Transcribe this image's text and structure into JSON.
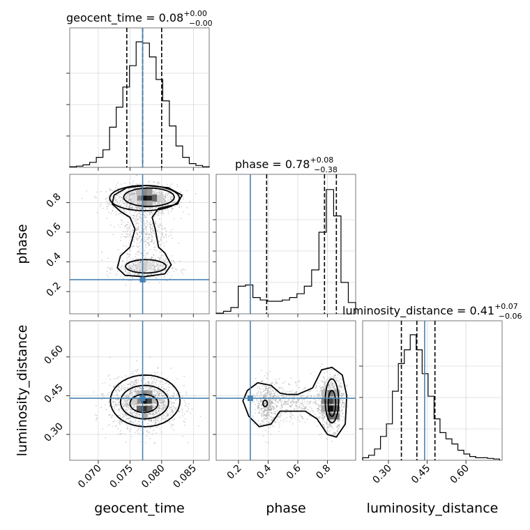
{
  "chart_data": {
    "type": "corner",
    "parameters": [
      "geocent_time",
      "phase",
      "luminosity_distance"
    ],
    "axis_labels": {
      "geocent_time": "geocent_time",
      "phase": "phase",
      "luminosity_distance": "luminosity_distance"
    },
    "ranges": {
      "geocent_time": [
        0.0655,
        0.0875
      ],
      "phase": [
        0.05,
        0.99
      ],
      "luminosity_distance": [
        0.2,
        0.74
      ]
    },
    "ticks": {
      "geocent_time": {
        "values": [
          0.07,
          0.075,
          0.08,
          0.085
        ],
        "labels": [
          "0.070",
          "0.075",
          "0.080",
          "0.085"
        ]
      },
      "phase": {
        "values": [
          0.2,
          0.4,
          0.6,
          0.8
        ],
        "labels": [
          "0.2",
          "0.4",
          "0.6",
          "0.8"
        ]
      },
      "luminosity_distance": {
        "values": [
          0.3,
          0.45,
          0.6
        ],
        "labels": [
          "0.30",
          "0.45",
          "0.60"
        ]
      }
    },
    "truths": {
      "geocent_time": 0.077,
      "phase": 0.28,
      "luminosity_distance": 0.44
    },
    "quantiles": {
      "geocent_time": [
        0.0745,
        0.077,
        0.08
      ],
      "phase": [
        0.39,
        0.78,
        0.86
      ],
      "luminosity_distance": [
        0.35,
        0.41,
        0.48
      ]
    },
    "titles": {
      "geocent_time": {
        "text": "geocent_time = 0.08",
        "plus": "+0.00",
        "minus": "−0.00"
      },
      "phase": {
        "text": "phase = 0.78",
        "plus": "+0.08",
        "minus": "−0.38"
      },
      "luminosity_distance": {
        "text": "luminosity_distance = 0.41",
        "plus": "+0.07",
        "minus": "−0.06"
      }
    },
    "histograms": {
      "geocent_time": [
        0.5,
        1,
        2,
        4,
        8,
        14,
        32,
        48,
        64,
        81,
        100,
        99,
        88,
        70,
        53,
        33,
        17,
        8,
        3,
        1.5,
        0.5
      ],
      "phase": [
        0.5,
        2,
        5,
        22,
        23,
        13,
        11,
        10,
        10,
        11,
        13,
        16,
        22,
        35,
        65,
        99,
        78,
        25,
        9
      ],
      "luminosity_distance": [
        2,
        4,
        9,
        19,
        29,
        55,
        77,
        88,
        100,
        88,
        69,
        51,
        33,
        22,
        17,
        13,
        8,
        5,
        3,
        2,
        2,
        1.5,
        1
      ]
    },
    "grid": true,
    "color": "#4682b4"
  }
}
